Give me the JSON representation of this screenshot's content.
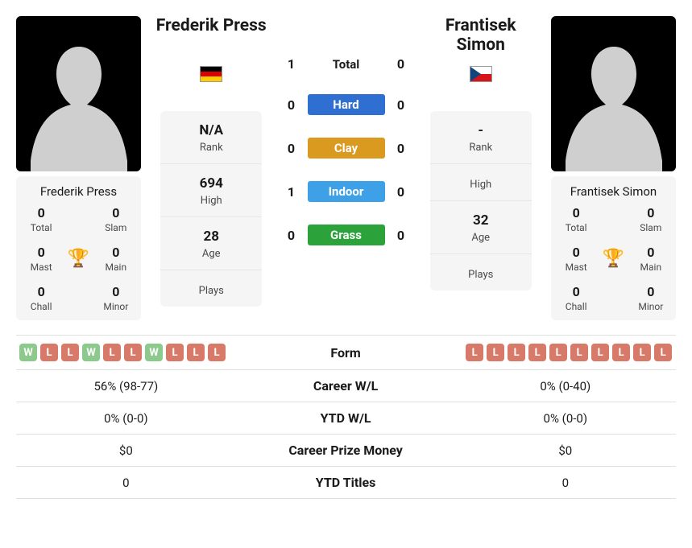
{
  "p1": {
    "name": "Frederik Press",
    "flag": "de",
    "rank": "N/A",
    "high": "694",
    "age": "28",
    "plays": "",
    "stats": {
      "total": "0",
      "slam": "0",
      "mast": "0",
      "main": "0",
      "chall": "0",
      "minor": "0"
    }
  },
  "p2": {
    "name": "Frantisek Simon",
    "flag": "cz",
    "rank": "-",
    "high": "",
    "age": "32",
    "plays": "",
    "stats": {
      "total": "0",
      "slam": "0",
      "mast": "0",
      "main": "0",
      "chall": "0",
      "minor": "0"
    }
  },
  "labels": {
    "rank": "Rank",
    "high": "High",
    "age": "Age",
    "plays": "Plays",
    "total": "Total",
    "slam": "Slam",
    "mast": "Mast",
    "main": "Main",
    "chall": "Chall",
    "minor": "Minor"
  },
  "h2h": {
    "rows": [
      {
        "p1": "1",
        "label": "Total",
        "p2": "0",
        "color": "",
        "text": "#1a1a1a"
      },
      {
        "p1": "0",
        "label": "Hard",
        "p2": "0",
        "color": "#2f6fd1",
        "text": "#fff"
      },
      {
        "p1": "0",
        "label": "Clay",
        "p2": "0",
        "color": "#d99a1f",
        "text": "#fff"
      },
      {
        "p1": "1",
        "label": "Indoor",
        "p2": "0",
        "color": "#3ea1e8",
        "text": "#fff"
      },
      {
        "p1": "0",
        "label": "Grass",
        "p2": "0",
        "color": "#2ca33a",
        "text": "#fff"
      }
    ]
  },
  "cmp": {
    "form_label": "Form",
    "rows": [
      {
        "label": "Career W/L",
        "p1": "56% (98-77)",
        "p2": "0% (0-40)"
      },
      {
        "label": "YTD W/L",
        "p1": "0% (0-0)",
        "p2": "0% (0-0)"
      },
      {
        "label": "Career Prize Money",
        "p1": "$0",
        "p2": "$0"
      },
      {
        "label": "YTD Titles",
        "p1": "0",
        "p2": "0"
      }
    ],
    "p1_form": [
      "W",
      "L",
      "L",
      "W",
      "L",
      "L",
      "W",
      "L",
      "L",
      "L"
    ],
    "p2_form": [
      "L",
      "L",
      "L",
      "L",
      "L",
      "L",
      "L",
      "L",
      "L",
      "L"
    ]
  }
}
